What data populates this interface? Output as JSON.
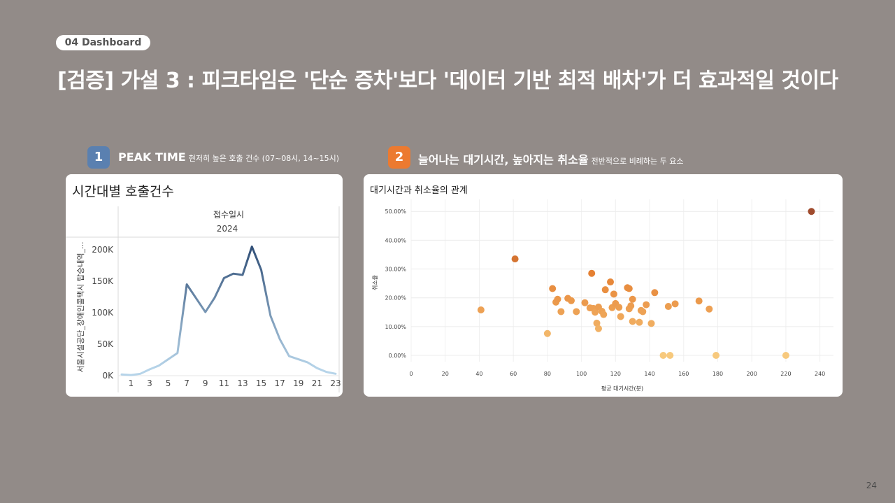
{
  "section": {
    "label": "04 Dashboard"
  },
  "title": "[검증] 가설 3 : 피크타임은 '단순 증차'보다 '데이터 기반 최적 배차'가 더 효과적일 것이다",
  "page_number": "24",
  "sections": [
    {
      "number": "1",
      "heading": "PEAK TIME",
      "subheading": "현저히 높은 호출 건수 (07~08시, 14~15시)",
      "color": "#5a80b0"
    },
    {
      "number": "2",
      "heading": "늘어나는 대기시간, 높아지는 취소율",
      "subheading": "전반적으로 비례하는 두 요소",
      "color": "#ec7a30"
    }
  ],
  "line_card": {
    "title": "시간대별 호출건수",
    "header_label": "접수일시",
    "header_year": "2024",
    "ylabel": "서울시설공단_장애인콜택시 탑승내역_..."
  },
  "scatter_card": {
    "title": "대기시간과 취소율의 관계"
  },
  "chart_data": [
    {
      "type": "line",
      "title": "시간대별 호출건수",
      "xlabel": "접수일시",
      "ylabel": "서울시설공단_장애인콜택시 탑승내역_...",
      "x": [
        0,
        1,
        2,
        3,
        4,
        5,
        6,
        7,
        8,
        9,
        10,
        11,
        12,
        13,
        14,
        15,
        16,
        17,
        18,
        19,
        20,
        21,
        22,
        23
      ],
      "x_ticks": [
        1,
        3,
        5,
        7,
        9,
        11,
        13,
        15,
        17,
        19,
        21,
        23
      ],
      "values": [
        2000,
        1000,
        3000,
        10000,
        16000,
        26000,
        36000,
        145000,
        123000,
        101000,
        124000,
        155000,
        162000,
        160000,
        205000,
        168000,
        95000,
        58000,
        31000,
        26000,
        21000,
        12000,
        6000,
        3000
      ],
      "ylim": [
        0,
        220000
      ],
      "y_ticks": [
        0,
        50000,
        100000,
        150000,
        200000
      ],
      "y_tick_labels": [
        "0K",
        "50K",
        "100K",
        "150K",
        "200K"
      ],
      "color_scale": [
        "#b6d4e9",
        "#2b4a73"
      ]
    },
    {
      "type": "scatter",
      "title": "대기시간과 취소율의 관계",
      "xlabel": "평균 대기시간(분)",
      "ylabel": "취소율",
      "xlim": [
        0,
        250
      ],
      "ylim": [
        0,
        52
      ],
      "x_ticks": [
        0,
        20,
        40,
        60,
        80,
        100,
        120,
        140,
        160,
        180,
        200,
        220,
        240
      ],
      "y_ticks": [
        0,
        10,
        20,
        30,
        40,
        50
      ],
      "y_tick_labels": [
        "0.00%",
        "10.00%",
        "20.00%",
        "30.00%",
        "40.00%",
        "50.00%"
      ],
      "grid": true,
      "points": [
        {
          "x": 41,
          "y": 15.8
        },
        {
          "x": 61,
          "y": 33.5
        },
        {
          "x": 80,
          "y": 7.6
        },
        {
          "x": 83,
          "y": 23.2
        },
        {
          "x": 85,
          "y": 18.5
        },
        {
          "x": 86,
          "y": 19.5
        },
        {
          "x": 88,
          "y": 15.2
        },
        {
          "x": 92,
          "y": 19.8
        },
        {
          "x": 94,
          "y": 19.0
        },
        {
          "x": 97,
          "y": 15.2
        },
        {
          "x": 102,
          "y": 18.3
        },
        {
          "x": 105,
          "y": 16.5
        },
        {
          "x": 106,
          "y": 28.5
        },
        {
          "x": 107,
          "y": 16.3
        },
        {
          "x": 108,
          "y": 15.0
        },
        {
          "x": 109,
          "y": 11.2
        },
        {
          "x": 110,
          "y": 9.3
        },
        {
          "x": 110,
          "y": 16.8
        },
        {
          "x": 112,
          "y": 15.3
        },
        {
          "x": 113,
          "y": 14.2
        },
        {
          "x": 114,
          "y": 22.8
        },
        {
          "x": 117,
          "y": 25.5
        },
        {
          "x": 118,
          "y": 16.6
        },
        {
          "x": 119,
          "y": 21.3
        },
        {
          "x": 120,
          "y": 18.0
        },
        {
          "x": 122,
          "y": 16.7
        },
        {
          "x": 123,
          "y": 13.5
        },
        {
          "x": 127,
          "y": 23.5
        },
        {
          "x": 128,
          "y": 23.2
        },
        {
          "x": 128,
          "y": 16.2
        },
        {
          "x": 129,
          "y": 17.2
        },
        {
          "x": 130,
          "y": 19.5
        },
        {
          "x": 130,
          "y": 11.8
        },
        {
          "x": 134,
          "y": 11.5
        },
        {
          "x": 135,
          "y": 15.6
        },
        {
          "x": 136,
          "y": 15.2
        },
        {
          "x": 138,
          "y": 17.6
        },
        {
          "x": 141,
          "y": 11.1
        },
        {
          "x": 143,
          "y": 21.8
        },
        {
          "x": 148,
          "y": 0
        },
        {
          "x": 151,
          "y": 17.0
        },
        {
          "x": 152,
          "y": 0
        },
        {
          "x": 155,
          "y": 17.9
        },
        {
          "x": 169,
          "y": 18.9
        },
        {
          "x": 175,
          "y": 16.1
        },
        {
          "x": 179,
          "y": 0
        },
        {
          "x": 220,
          "y": 0
        },
        {
          "x": 235,
          "y": 50.0
        }
      ]
    }
  ]
}
